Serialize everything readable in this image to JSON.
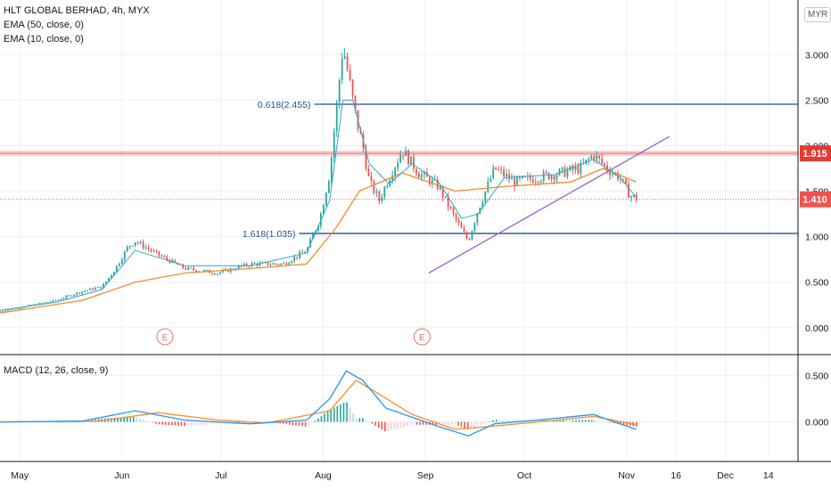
{
  "header": {
    "title": "HLT GLOBAL BERHAD, 4h, MYX",
    "ema50_label": "EMA (50, close, 0)",
    "ema10_label": "EMA (10, close, 0)",
    "currency": "MYR"
  },
  "macd_panel": {
    "label": "MACD (12, 26, close, 9)"
  },
  "earnings_marker": "E",
  "colors": {
    "up": "#26a69a",
    "down": "#ef5350",
    "ema10": "#2ea7c9",
    "ema50": "#f08c2c",
    "fib": "#1f4f96",
    "trend": "#9c5ecb",
    "resistance": "#f4a7a7",
    "macd": "#2196f3",
    "signal": "#ff8c28"
  },
  "chart_data": [
    {
      "type": "candlestick",
      "title": "HLT GLOBAL BERHAD, 4h, MYX",
      "y_ticks": [
        0.0,
        0.5,
        1.0,
        1.5,
        2.0,
        2.5,
        3.0
      ],
      "y_tick_labels": [
        "0.000",
        "0.500",
        "1.000",
        "1.500",
        "2.000",
        "2.500",
        "3.000"
      ],
      "ylim": [
        -0.1,
        3.6
      ],
      "x_labels": [
        "May",
        "Jun",
        "Jul",
        "Aug",
        "Sep",
        "Oct",
        "Nov",
        "16",
        "Dec",
        "14"
      ],
      "x_range": [
        "2020-04-25",
        "2020-12-23"
      ],
      "price_path": [
        [
          "2020-04-25",
          0.18
        ],
        [
          "2020-05-05",
          0.25
        ],
        [
          "2020-05-12",
          0.3
        ],
        [
          "2020-05-20",
          0.4
        ],
        [
          "2020-05-26",
          0.45
        ],
        [
          "2020-05-30",
          0.65
        ],
        [
          "2020-06-03",
          0.9
        ],
        [
          "2020-06-05",
          0.95
        ],
        [
          "2020-06-12",
          0.8
        ],
        [
          "2020-06-20",
          0.65
        ],
        [
          "2020-06-30",
          0.6
        ],
        [
          "2020-07-10",
          0.7
        ],
        [
          "2020-07-20",
          0.7
        ],
        [
          "2020-07-27",
          0.85
        ],
        [
          "2020-07-31",
          1.2
        ],
        [
          "2020-08-03",
          1.7
        ],
        [
          "2020-08-05",
          2.4
        ],
        [
          "2020-08-07",
          3.1
        ],
        [
          "2020-08-09",
          2.7
        ],
        [
          "2020-08-11",
          2.3
        ],
        [
          "2020-08-13",
          2.0
        ],
        [
          "2020-08-15",
          1.6
        ],
        [
          "2020-08-18",
          1.4
        ],
        [
          "2020-08-21",
          1.65
        ],
        [
          "2020-08-25",
          1.95
        ],
        [
          "2020-08-30",
          1.7
        ],
        [
          "2020-09-05",
          1.55
        ],
        [
          "2020-09-10",
          1.2
        ],
        [
          "2020-09-14",
          0.95
        ],
        [
          "2020-09-17",
          1.3
        ],
        [
          "2020-09-22",
          1.75
        ],
        [
          "2020-09-28",
          1.6
        ],
        [
          "2020-10-05",
          1.65
        ],
        [
          "2020-10-12",
          1.7
        ],
        [
          "2020-10-18",
          1.75
        ],
        [
          "2020-10-22",
          1.9
        ],
        [
          "2020-10-26",
          1.75
        ],
        [
          "2020-10-30",
          1.65
        ],
        [
          "2020-11-02",
          1.45
        ],
        [
          "2020-11-04",
          1.42
        ]
      ],
      "ema10_path": [
        [
          "2020-04-25",
          0.19
        ],
        [
          "2020-05-12",
          0.28
        ],
        [
          "2020-05-26",
          0.42
        ],
        [
          "2020-06-05",
          0.85
        ],
        [
          "2020-06-20",
          0.68
        ],
        [
          "2020-07-10",
          0.68
        ],
        [
          "2020-07-27",
          0.82
        ],
        [
          "2020-08-03",
          1.4
        ],
        [
          "2020-08-07",
          2.5
        ],
        [
          "2020-08-10",
          2.5
        ],
        [
          "2020-08-15",
          1.8
        ],
        [
          "2020-08-21",
          1.58
        ],
        [
          "2020-08-28",
          1.8
        ],
        [
          "2020-09-05",
          1.6
        ],
        [
          "2020-09-12",
          1.2
        ],
        [
          "2020-09-17",
          1.25
        ],
        [
          "2020-09-25",
          1.65
        ],
        [
          "2020-10-10",
          1.68
        ],
        [
          "2020-10-22",
          1.85
        ],
        [
          "2020-10-30",
          1.65
        ],
        [
          "2020-11-04",
          1.43
        ]
      ],
      "ema50_path": [
        [
          "2020-04-25",
          0.16
        ],
        [
          "2020-05-20",
          0.3
        ],
        [
          "2020-06-05",
          0.5
        ],
        [
          "2020-06-20",
          0.6
        ],
        [
          "2020-07-10",
          0.65
        ],
        [
          "2020-07-27",
          0.7
        ],
        [
          "2020-08-05",
          1.1
        ],
        [
          "2020-08-12",
          1.5
        ],
        [
          "2020-08-25",
          1.7
        ],
        [
          "2020-09-10",
          1.5
        ],
        [
          "2020-09-25",
          1.55
        ],
        [
          "2020-10-15",
          1.6
        ],
        [
          "2020-10-25",
          1.75
        ],
        [
          "2020-11-04",
          1.6
        ]
      ],
      "horizontal_levels": [
        {
          "label": "0.618(2.455)",
          "value": 2.455
        },
        {
          "label": "1.618(1.035)",
          "value": 1.035
        }
      ],
      "resistance_level": {
        "value": 1.915,
        "label": "1.915"
      },
      "last_price": {
        "value": 1.41,
        "label": "1.410"
      },
      "trendline": [
        [
          "2020-09-02",
          0.6
        ],
        [
          "2020-11-14",
          2.1
        ]
      ],
      "earnings_dates": [
        "2020-06-14",
        "2020-08-31"
      ]
    },
    {
      "type": "line",
      "title": "MACD (12, 26, close, 9)",
      "y_ticks": [
        0.0,
        0.5
      ],
      "y_tick_labels": [
        "0.000",
        "0.500"
      ],
      "ylim": [
        -0.35,
        0.65
      ],
      "macd_path": [
        [
          "2020-04-25",
          0.0
        ],
        [
          "2020-05-20",
          0.01
        ],
        [
          "2020-06-05",
          0.12
        ],
        [
          "2020-06-20",
          0.02
        ],
        [
          "2020-07-10",
          -0.02
        ],
        [
          "2020-07-27",
          0.02
        ],
        [
          "2020-08-03",
          0.25
        ],
        [
          "2020-08-08",
          0.55
        ],
        [
          "2020-08-13",
          0.45
        ],
        [
          "2020-08-20",
          0.15
        ],
        [
          "2020-08-28",
          0.05
        ],
        [
          "2020-09-05",
          -0.05
        ],
        [
          "2020-09-14",
          -0.15
        ],
        [
          "2020-09-22",
          -0.02
        ],
        [
          "2020-10-05",
          0.02
        ],
        [
          "2020-10-22",
          0.08
        ],
        [
          "2020-10-30",
          -0.02
        ],
        [
          "2020-11-04",
          -0.08
        ]
      ],
      "signal_path": [
        [
          "2020-04-25",
          0.0
        ],
        [
          "2020-05-25",
          0.01
        ],
        [
          "2020-06-12",
          0.1
        ],
        [
          "2020-06-30",
          0.02
        ],
        [
          "2020-07-15",
          -0.01
        ],
        [
          "2020-08-03",
          0.12
        ],
        [
          "2020-08-11",
          0.45
        ],
        [
          "2020-08-18",
          0.3
        ],
        [
          "2020-08-28",
          0.08
        ],
        [
          "2020-09-10",
          -0.08
        ],
        [
          "2020-09-20",
          -0.05
        ],
        [
          "2020-10-05",
          0.0
        ],
        [
          "2020-10-22",
          0.06
        ],
        [
          "2020-11-04",
          -0.03
        ]
      ]
    }
  ]
}
